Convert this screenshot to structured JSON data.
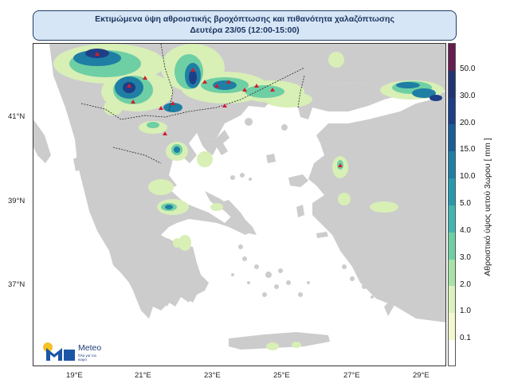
{
  "title": {
    "line1": "Εκτιμώμενα ύψη αθροιστικής βροχόπτωσης και πιθανότητα χαλαζόπτωσης",
    "line2": "Δευτέρα 23/05 (12:00-15:00)"
  },
  "axes": {
    "lat_labels": [
      "41°N",
      "39°N",
      "37°N"
    ],
    "lon_labels": [
      "19°E",
      "21°E",
      "23°E",
      "25°E",
      "27°E",
      "29°E"
    ]
  },
  "colorbar": {
    "title": "Αθροιστικό ύψος υετού 3ωρου [ mm ]",
    "labels": [
      "50.0",
      "30.0",
      "20.0",
      "15.0",
      "10.0",
      "5.0",
      "4.0",
      "3.0",
      "2.0",
      "1.0",
      "0.1"
    ],
    "colors": [
      "#661d4f",
      "#223472",
      "#1e3f87",
      "#1b5d96",
      "#1f7ea4",
      "#2899ad",
      "#41b5b0",
      "#6ecfa4",
      "#a7e3a7",
      "#daf2bc",
      "#f3f8ce",
      "#ffffff"
    ]
  },
  "map_colors": {
    "sea": "#ffffff",
    "land": "#cccccc",
    "light_rain": "#d8efb6",
    "moderate_rain": "#6ecfa4",
    "heavy_rain": "#1f7ea4",
    "very_heavy_rain": "#1e3f87",
    "hail_marker": "#d0202a"
  },
  "logo": {
    "name": "Meteo",
    "tagline": "Όλα για τον καιρό"
  }
}
